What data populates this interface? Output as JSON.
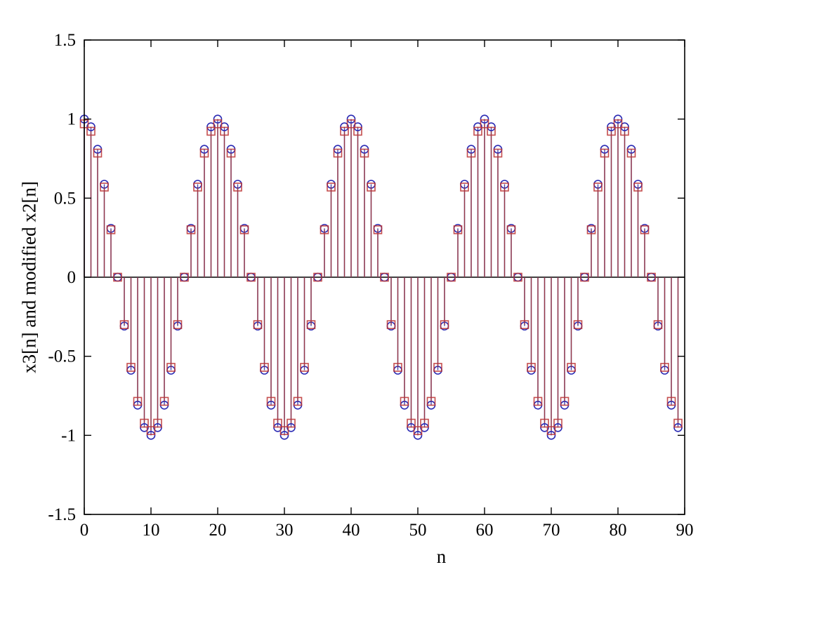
{
  "figure": {
    "background_color": "#ffffff",
    "xlabel": "n",
    "ylabel": "x3[n] and modified x2[n]"
  },
  "chart_data": {
    "type": "stem",
    "title": "",
    "xlabel": "n",
    "ylabel": "x3[n] and modified x2[n]",
    "xlim": [
      0,
      90
    ],
    "ylim": [
      -1.5,
      1.5
    ],
    "xticks": [
      0,
      10,
      20,
      30,
      40,
      50,
      60,
      70,
      80,
      90
    ],
    "xtick_labels": [
      "0",
      "10",
      "20",
      "30",
      "40",
      "50",
      "60",
      "70",
      "80",
      "90"
    ],
    "yticks": [
      -1.5,
      -1,
      -0.5,
      0,
      0.5,
      1,
      1.5
    ],
    "ytick_labels": [
      "-1.5",
      "-1",
      "-0.5",
      "0",
      "0.5",
      "1",
      "1.5"
    ],
    "baseline": 0,
    "grid": false,
    "legend": "none",
    "axis_color": "#000000",
    "x": [
      0,
      1,
      2,
      3,
      4,
      5,
      6,
      7,
      8,
      9,
      10,
      11,
      12,
      13,
      14,
      15,
      16,
      17,
      18,
      19,
      20,
      21,
      22,
      23,
      24,
      25,
      26,
      27,
      28,
      29,
      30,
      31,
      32,
      33,
      34,
      35,
      36,
      37,
      38,
      39,
      40,
      41,
      42,
      43,
      44,
      45,
      46,
      47,
      48,
      49,
      50,
      51,
      52,
      53,
      54,
      55,
      56,
      57,
      58,
      59,
      60,
      61,
      62,
      63,
      64,
      65,
      66,
      67,
      68,
      69,
      70,
      71,
      72,
      73,
      74,
      75,
      76,
      77,
      78,
      79,
      80,
      81,
      82,
      83,
      84,
      85,
      86,
      87,
      88,
      89
    ],
    "series": [
      {
        "name": "x3[n]",
        "marker": "circle",
        "marker_color": "#2b2bb4",
        "stem_color": "#4a4ab0",
        "values": [
          1,
          0.951,
          0.809,
          0.588,
          0.309,
          0,
          -0.309,
          -0.588,
          -0.809,
          -0.951,
          -1,
          -0.951,
          -0.809,
          -0.588,
          -0.309,
          0,
          0.309,
          0.588,
          0.809,
          0.951,
          1,
          0.951,
          0.809,
          0.588,
          0.309,
          0,
          -0.309,
          -0.588,
          -0.809,
          -0.951,
          -1,
          -0.951,
          -0.809,
          -0.588,
          -0.309,
          0,
          0.309,
          0.588,
          0.809,
          0.951,
          1,
          0.951,
          0.809,
          0.588,
          0.309,
          0,
          -0.309,
          -0.588,
          -0.809,
          -0.951,
          -1,
          -0.951,
          -0.809,
          -0.588,
          -0.309,
          0,
          0.309,
          0.588,
          0.809,
          0.951,
          1,
          0.951,
          0.809,
          0.588,
          0.309,
          0,
          -0.309,
          -0.588,
          -0.809,
          -0.951,
          -1,
          -0.951,
          -0.809,
          -0.588,
          -0.309,
          0,
          0.309,
          0.588,
          0.809,
          0.951,
          1,
          0.951,
          0.809,
          0.588,
          0.309,
          0,
          -0.309,
          -0.588,
          -0.809,
          -0.951
        ]
      },
      {
        "name": "modified x2[n]",
        "marker": "square",
        "marker_color": "#bb3030",
        "stem_color": "#a33434",
        "values": [
          0.97,
          0.923,
          0.785,
          0.57,
          0.3,
          0,
          -0.3,
          -0.57,
          -0.785,
          -0.923,
          -0.97,
          -0.923,
          -0.785,
          -0.57,
          -0.3,
          0,
          0.3,
          0.57,
          0.785,
          0.923,
          0.97,
          0.923,
          0.785,
          0.57,
          0.3,
          0,
          -0.3,
          -0.57,
          -0.785,
          -0.923,
          -0.97,
          -0.923,
          -0.785,
          -0.57,
          -0.3,
          0,
          0.3,
          0.57,
          0.785,
          0.923,
          0.97,
          0.923,
          0.785,
          0.57,
          0.3,
          0,
          -0.3,
          -0.57,
          -0.785,
          -0.923,
          -0.97,
          -0.923,
          -0.785,
          -0.57,
          -0.3,
          0,
          0.3,
          0.57,
          0.785,
          0.923,
          0.97,
          0.923,
          0.785,
          0.57,
          0.3,
          0,
          -0.3,
          -0.57,
          -0.785,
          -0.923,
          -0.97,
          -0.923,
          -0.785,
          -0.57,
          -0.3,
          0,
          0.3,
          0.57,
          0.785,
          0.923,
          0.97,
          0.923,
          0.785,
          0.57,
          0.3,
          0,
          -0.3,
          -0.57,
          -0.785,
          -0.923
        ]
      }
    ]
  }
}
